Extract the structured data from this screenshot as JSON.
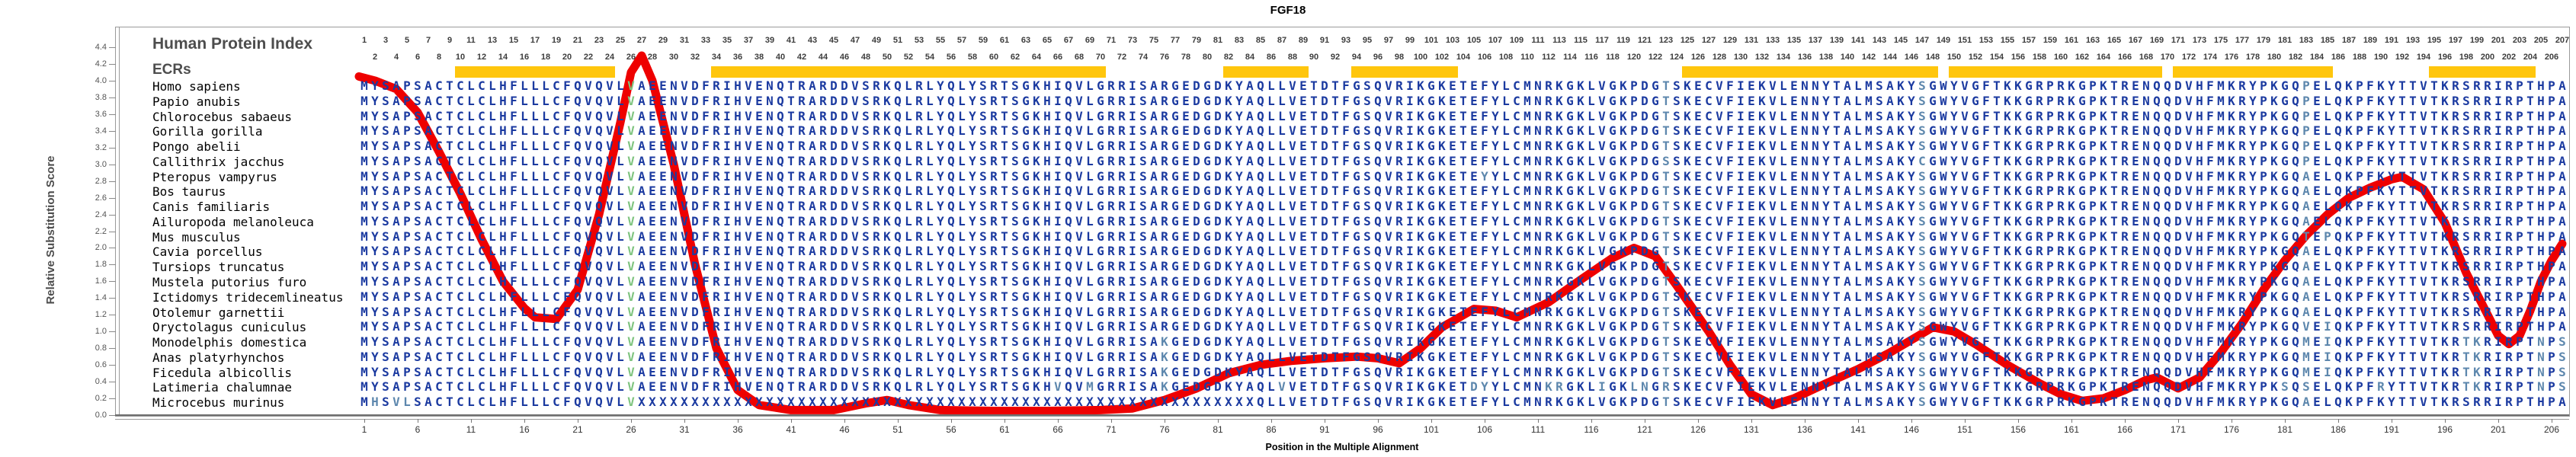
{
  "title": "FGF18",
  "y_axis": {
    "label": "Relative Substitution Score",
    "ticks": [
      "0.0",
      "0.2",
      "0.4",
      "0.6",
      "0.8",
      "1.0",
      "1.2",
      "1.4",
      "1.6",
      "1.8",
      "2.0",
      "2.2",
      "2.4",
      "2.6",
      "2.8",
      "3.0",
      "3.2",
      "3.4",
      "3.6",
      "3.8",
      "4.0",
      "4.2",
      "4.4"
    ]
  },
  "x_axis": {
    "label": "Position in the Multiple Alignment",
    "ticks": [
      1,
      6,
      11,
      16,
      21,
      26,
      31,
      36,
      41,
      46,
      51,
      56,
      61,
      66,
      71,
      76,
      81,
      86,
      91,
      96,
      101,
      106,
      111,
      116,
      121,
      126,
      131,
      136,
      141,
      146,
      151,
      156,
      161,
      166,
      171,
      176,
      181,
      186,
      191,
      196,
      201,
      206
    ]
  },
  "header": {
    "index_label": "Human Protein Index",
    "ecr_label": "ECRs",
    "num_positions": 207
  },
  "ecr_bars": [
    {
      "start": 10,
      "end": 24
    },
    {
      "start": 34,
      "end": 70
    },
    {
      "start": 82,
      "end": 89
    },
    {
      "start": 94,
      "end": 103
    },
    {
      "start": 125,
      "end": 148
    },
    {
      "start": 150,
      "end": 169
    },
    {
      "start": 171,
      "end": 185
    },
    {
      "start": 195,
      "end": 204
    }
  ],
  "highlight": {
    "green_columns": [
      26
    ],
    "teal_columns": [
      123,
      147,
      183
    ]
  },
  "colors": {
    "sequence_navy": "#1b3aa0",
    "variant_teal": "#5d87ad",
    "green": "#7fc47f",
    "ecr_yellow": "#ffc60d",
    "curve_red": "#ee0000",
    "header_gray": "#4d4d4d"
  },
  "alignment": {
    "species": [
      {
        "name": "Homo sapiens",
        "seq": "MYSAPSACTCLCLHFLLLCFQVQVLVAEENVDFRIHVENQTRARDDVSRKQLRLYQLYSRTSGKHIQVLGRRISARGEDGDKYAQLLVETDTFGSQVRIKGKETEFYLCMNRKGKLVGKPDGTSKECVFIEKVLENNYTALMSAKYSGWYVGFTKKGRPRKGPKTRENQQDVHFMKRYPKGQPELQKPFKYTTVTKRSRRIRPTHPA"
      },
      {
        "name": "Papio anubis",
        "seq": "MYSAPSACTCLCLHFLLLCFQVQVLVAEENVDFRIHVENQTRARDDVSRKQLRLYQLYSRTSGKHIQVLGRRISARGEDGDKYAQLLVETDTFGSQVRIKGKETEFYLCMNRKGKLVGKPDGTSKECVFIEKVLENNYTALMSAKYSGWYVGFTKKGRPRKGPKTRENQQDVHFMKRYPKGQPELQKPFKYTTVTKRSRRIRPTHPA"
      },
      {
        "name": "Chlorocebus sabaeus",
        "seq": "MYSAPSACTCLCLHFLLLCFQVQVLVAEENVDFRIHVENQTRARDDVSRKQLRLYQLYSRTSGKHIQVLGRRISARGEDGDKYAQLLVETDTFGSQVRIKGKETEFYLCMNRKGKLVGKPDGTSKECVFIEKVLENNYTALMSAKYSGWYVGFTKKGRPRKGPKTRENQQDVHFMKRYPKGQPELQKPFKYTTVTKRSRRIRPTHPA"
      },
      {
        "name": "Gorilla gorilla",
        "seq": "MYSAPSACTCLCLHFLLLCFQVQVLVAEENVDFRIHVENQTRARDDVSRKQLRLYQLYSRTSGKHIQVLGRRISARGEDGDKYAQLLVETDTFGSQVRIKGKETEFYLCMNRKGKLVGKPDGTSKECVFIEKVLENNYTALMSAKYSGWYVGFTKKGRPRKGPKTRENQQDVHFMKRYPKGQPELQKPFKYTTVTKRSRRIRPTHPA"
      },
      {
        "name": "Pongo abelii",
        "seq": "MYSAPSACTCLCLHFLLLCFQVQVLVAEENVDFRIHVENQTRARDDVSRKQLRLYQLYSRTSGKHIQVLGRRISARGEDGDKYAQLLVETDTFGSQVRIKGKETEFYLCMNRKGKLVGKPDGTSKECVFIEKVLENNYTALMSAKYSGWYVGFTKKGRPRKGPKTRENQQDVHFMKRYPKGQPELQKPFKYTTVTKRSRRIRPTHPA"
      },
      {
        "name": "Callithrix jacchus",
        "seq": "MYSAPSACTCLCLHFLLLCFQVQVLVAEENVDFRIHVENQTRARDDVSRKQLRLYQLYSRTSGKHIQVLGRRISARGEDGDKYAQLLVETDTFGSQVRIKGKETEFYLCMNRKGKLVGKPDGSSKECVFIEKVLENNYTALMSAKYCGWYVGFTKKGRPRKGPKTRENQQDVHFMKRYPKGQPELQKPFKYTTVTKRSRRIRPTHPA"
      },
      {
        "name": "Pteropus vampyrus",
        "seq": "MYSAPSACTCLCLHFLLLCFQVQVLVAEENVDFRIHVENQTRARDDVSRKQLRLYQLYSRTSGKHIQVLGRRISARGEDGDKYAQLLVETDTFGSQVRIKGKETEYYLCMNRKGKLVGKPDGTSKECVFIEKVLENNYTALMSAKYSGWYVGFTKKGRPRKGPKTRENQQDVHFMKRYPKGQAELQKPFKYTTVTKRSRRIRPTHPA"
      },
      {
        "name": "Bos taurus",
        "seq": "MYSAPSACTCLCLHFLLLCFQVQVLVAEENVDFRIHVENQTRARDDVSRKQLRLYQLYSRTSGKHIQVLGRRISARGEDGDKYAQLLVETDTFGSQVRIKGKETEFYLCMNRKGKLVGKPDGTSKECVFIEKVLENNYTALMSAKYSGWYVGFTKKGRPRKGPKTRENQQDVHFMKRYPKGQAELQKPFKYTTVTKRSRRIRPTHPA"
      },
      {
        "name": "Canis familiaris",
        "seq": "MYSAPSACTCLCLHFLLLCFQVQVLVAEENVDFRIHVENQTRARDDVSRKQLRLYQLYSRTSGKHIQVLGRRISARGEDGDKYAQLLVETDTFGSQVRIKGKETEFYLCMNRKGKLVGKPDGTSKECVFIEKVLENNYTALMSAKYSGWYVGFTKKGRPRKGPKTRENQQDVHFMKRYPKGQAELQKPFKYTTVTKRSRRIRPTHPA"
      },
      {
        "name": "Ailuropoda melanoleuca",
        "seq": "MYSAPSACTCLCLHFLLLCFQVQVLVAEENVDFRIHVENQTRARDDVSRKQLRLYQLYSRTSGKHIQVLGRRISARGEDGDKYAQLLVETDTFGSQVRIKGKETEFYLCMNRKGKLVGKPDGTSKECVFIEKVLENNYTALMSAKYSGWYVGFTKKGRPRKGPKTRENQQDVHFMKRYPKGQAELQKPFKYTTVTKRSRRIRPTHPA"
      },
      {
        "name": "Mus musculus",
        "seq": "MYSAPSACTCLCLHFLLLCFQVQVLVAEENVDFRIHVENQTRARDDVSRKQLRLYQLYSRTSGKHIQVLGRRISARGEDGDKYAQLLVETDTFGSQVRIKGKETEFYLCMNRKGKLVGKPDGTSKECVFIEKVLENNYTALMSAKYSGWYVGFTKKGRPRKGPKTRENQQDVHFMKRYPKGQTEPQKPFKYTTVTKRSRRIRPTHPA"
      },
      {
        "name": "Cavia porcellus",
        "seq": "MYSAPSACTCLCLHFLLLCFQVQVLVAEENVDFRIHVENQTRARDDVSRKQLRLYQLYSRTSGKHIQVLGRRISARGEDGDKYAQLLVETDTFGSQVRIKGKETEFYLCMNRKGKLVGKPDGTSKECVFIEKVLENNYTALMSAKYSGWYVGFTKKGRPRKGPKTRENQQDVHFMKRYPKGQAELQKPFKYTTVTKRSRRIRPTHPA"
      },
      {
        "name": "Tursiops truncatus",
        "seq": "MYSAPSACTCLCLHFLLLCFQVQVLVAEENVDFRIHVENQTRARDDVSRKQLRLYQLYSRTSGKHIQVLGRRISARGEDGDKYAQLLVETDTFGSQVRIKGKETEFYLCMNRKGKLVGKPDGTSKECVFIEKVLENNYTALMSAKYSGWYVGFTKKGRPRKGPKTRENQQDVHFMKRYPKGQAELQKPFKYTTVTKRSRRIRPTHPA"
      },
      {
        "name": "Mustela putorius furo",
        "seq": "MYSAPSACTCLCLHFLLLCFQVQVLVAEENVDFRIHVENQTRARDDVSRKQLRLYQLYSRTSGKHIQVLGRRISARGEDGDKYAQLLVETDTFGSQVRIKGKETEFYLCMNRKGKLVGKPDGTSKECVFIEKVLENNYTALMSAKYSGWYVGFTKKGRPRKGPKTRENQQDVHFMKRYPKGQAELQKPFKYTTVTKRSRRIRPTHPA"
      },
      {
        "name": "Ictidomys tridecemlineatus",
        "seq": "MYSAPSACTCLCLHFLLLCFQVQVLVAEENVDFRIHVENQTRARDDVSRKQLRLYQLYSRTSGKHIQVLGRRISARGEDGDKYAQLLVETDTFGSQVRIKGKETEFYLCMNRKGKLVGKPDGTSKECVFIEKVLENNYTALMSAKYSGWYVGFTKKGRPRKGPKTRENQQDVHFMKRYPKGQAELQKPFKYTTVTKRSRRIRPTHPA"
      },
      {
        "name": "Otolemur garnettii",
        "seq": "MYSAPSACTCLCLHFLLLCFQVQVLVAEENVDFRIHVENQTRARDDVSRKQLRLYQLYSRTSGKHIQVLGRRISARGEDGDKYAQLLVETDTFGSQVRIKGKETEFYLCMNRKGKLVGKPDGTSKECVFIEKVLENNYTALMSAKYSGWYVGFTKKGRPRKGPKTRENQQDVHFMKRYPKGQAELQKPFKYTTVTKRSRRIRPTHPA"
      },
      {
        "name": "Oryctolagus cuniculus",
        "seq": "MYSAPSACTCLCLHFLLLCFQVQVLVAEENVDFRIHVENQTRARDDVSRKQLRLYQLYSRTSGKHIQVLGRRISARGEDGDKYAQLLVETDTFGSQVRIKGKETEFYLCMNRKGKLVGKPDGTSKECVFIEKVLENNYTALMSAKYSGWYVGFTKKGRPRKGPKTRENQQDVHFMKRYPKGQVEIQKPFKYTTVTKRSRRIRPTHPA"
      },
      {
        "name": "Monodelphis domestica",
        "seq": "MYSAPSACTCLCLHFLLLCFQVQVLVAEENVDFRIHVENQTRARDDVSRKQLRLYQLYSRTSGKHIQVLGRRISAKGEDGDKYAQLLVETDTFGSQVRIKGKETEFYLCMNRKGKLVGKPDGTSKECVFIEKVLENNYTALMSAKYSGWYVGFTKKGRPRKGPKTRENQQDVHFMKRYPKGQMEIQKPFKYTTVTKRTKRIRPTNPS"
      },
      {
        "name": "Anas platyrhynchos",
        "seq": "MYSAPSACTCLCLHFLLLCFQVQVLVAEENVDFRIHVENQTRARDDVSRKQLRLYQLYSRTSGKHIQVLGRRISAKGEDGDKYAQLLVETDTFGSQVRIKGKETEFYLCMNRKGKLVGKPDGTSKECVFIEKVLENNYTALMSAKYSGWYVGFTKKGRPRKGPKTRENQQDVHFMKRYPKGQMEIQKPFKYTTVTKRTKRIRPTNPS"
      },
      {
        "name": "Ficedula albicollis",
        "seq": "MYSAPSACTCLCLHFLLLCFQVQVLVAEENVDFRIHVENQTRARDDVSRKQLRLYQLYSRTSGKHIQVLGRRISAKGEDGDKYAQLLVETDTFGSQVRIKGKETEFYLCMNRKGKLVGKPDGTSKECVFIEKVLENNYTALMSAKYSGWYVGFTKKGRPRKGPKTRENQQDVHFMKRYPKGQMEIQKPFKYTTVTKRTKRIRPTNPS"
      },
      {
        "name": "Latimeria chalumnae",
        "seq": "MYSAPSACTCLCLHFLLLCFQVQVLVAEENVDFRIHVENQTRARDDVSRKQLRLYQLYSRTSGKHVQVMGRRISAKGEDGDKYAQLVVETDTFGSQVRIKGKETDYYLCMNKRGKLIGKLNGRSKECVFIEKVLENNYTALMSAKYSGWYVGFTKKGRPRKGPKTRENQQDVHFMKRYPKSQSELQKPFRYTTVTKRTKRIRPTNPS"
      },
      {
        "name": "Microcebus murinus",
        "seq": "MHSVLSACTCLCLHFLLLCFQVQVLVXXXXXXXXXXXXXXXXXXXXXXXXXXXXXXXXXXXXXXXXXXXXXXXXXXXXXXXXXXQLLVETDTFGSQVRIKGKETEFYLCMNRKGKLVGKPDGTSKECVFIEKVLENNYTALMSAKYSGWYVGFTKKGRPRKGPKTRENQQDVHFMKRYPKGQAELQKPFKYTTVTKRSRRIRPTHPA"
      }
    ]
  },
  "chart_data": {
    "type": "line",
    "title": "FGF18",
    "xlabel": "Position in the Multiple Alignment",
    "ylabel": "Relative Substitution Score",
    "xlim": [
      1,
      207
    ],
    "ylim": [
      0,
      4.4
    ],
    "grid": false,
    "legend_position": "none",
    "series": [
      {
        "name": "Relative Substitution Score",
        "points": [
          [
            0.5,
            4.05
          ],
          [
            2,
            4.0
          ],
          [
            4,
            3.9
          ],
          [
            6,
            3.62
          ],
          [
            8,
            3.15
          ],
          [
            10,
            2.65
          ],
          [
            12,
            2.1
          ],
          [
            14,
            1.6
          ],
          [
            16,
            1.28
          ],
          [
            17,
            1.17
          ],
          [
            19,
            1.15
          ],
          [
            21,
            1.5
          ],
          [
            23,
            2.4
          ],
          [
            25,
            3.5
          ],
          [
            26,
            4.1
          ],
          [
            27,
            4.3
          ],
          [
            28,
            4.0
          ],
          [
            30,
            3.0
          ],
          [
            32,
            1.8
          ],
          [
            34,
            0.8
          ],
          [
            36,
            0.3
          ],
          [
            38,
            0.12
          ],
          [
            41,
            0.06
          ],
          [
            45,
            0.06
          ],
          [
            48,
            0.14
          ],
          [
            50,
            0.18
          ],
          [
            52,
            0.12
          ],
          [
            55,
            0.06
          ],
          [
            60,
            0.05
          ],
          [
            65,
            0.05
          ],
          [
            70,
            0.06
          ],
          [
            73,
            0.08
          ],
          [
            76,
            0.18
          ],
          [
            79,
            0.32
          ],
          [
            82,
            0.5
          ],
          [
            85,
            0.6
          ],
          [
            88,
            0.65
          ],
          [
            91,
            0.68
          ],
          [
            94,
            0.7
          ],
          [
            96,
            0.68
          ],
          [
            98,
            0.62
          ],
          [
            100,
            0.8
          ],
          [
            102,
            1.05
          ],
          [
            105,
            1.27
          ],
          [
            107,
            1.25
          ],
          [
            109,
            1.17
          ],
          [
            112,
            1.35
          ],
          [
            115,
            1.62
          ],
          [
            118,
            1.88
          ],
          [
            120,
            2.0
          ],
          [
            122,
            1.9
          ],
          [
            124,
            1.55
          ],
          [
            127,
            1.0
          ],
          [
            129,
            0.6
          ],
          [
            131,
            0.25
          ],
          [
            133,
            0.12
          ],
          [
            135,
            0.2
          ],
          [
            138,
            0.38
          ],
          [
            141,
            0.55
          ],
          [
            144,
            0.75
          ],
          [
            146,
            0.9
          ],
          [
            148,
            1.05
          ],
          [
            150,
            1.0
          ],
          [
            152,
            0.85
          ],
          [
            155,
            0.6
          ],
          [
            158,
            0.38
          ],
          [
            160,
            0.25
          ],
          [
            162,
            0.17
          ],
          [
            164,
            0.2
          ],
          [
            166,
            0.3
          ],
          [
            168,
            0.42
          ],
          [
            169,
            0.45
          ],
          [
            171,
            0.32
          ],
          [
            173,
            0.45
          ],
          [
            175,
            0.75
          ],
          [
            177,
            1.1
          ],
          [
            179,
            1.5
          ],
          [
            181,
            1.85
          ],
          [
            183,
            2.15
          ],
          [
            185,
            2.4
          ],
          [
            187,
            2.6
          ],
          [
            189,
            2.72
          ],
          [
            191,
            2.82
          ],
          [
            192,
            2.85
          ],
          [
            194,
            2.7
          ],
          [
            196,
            2.3
          ],
          [
            198,
            1.7
          ],
          [
            200,
            1.2
          ],
          [
            201,
            0.95
          ],
          [
            202,
            0.85
          ],
          [
            203,
            0.95
          ],
          [
            204,
            1.25
          ],
          [
            205,
            1.6
          ],
          [
            206,
            1.85
          ],
          [
            207,
            2.05
          ]
        ]
      }
    ]
  }
}
